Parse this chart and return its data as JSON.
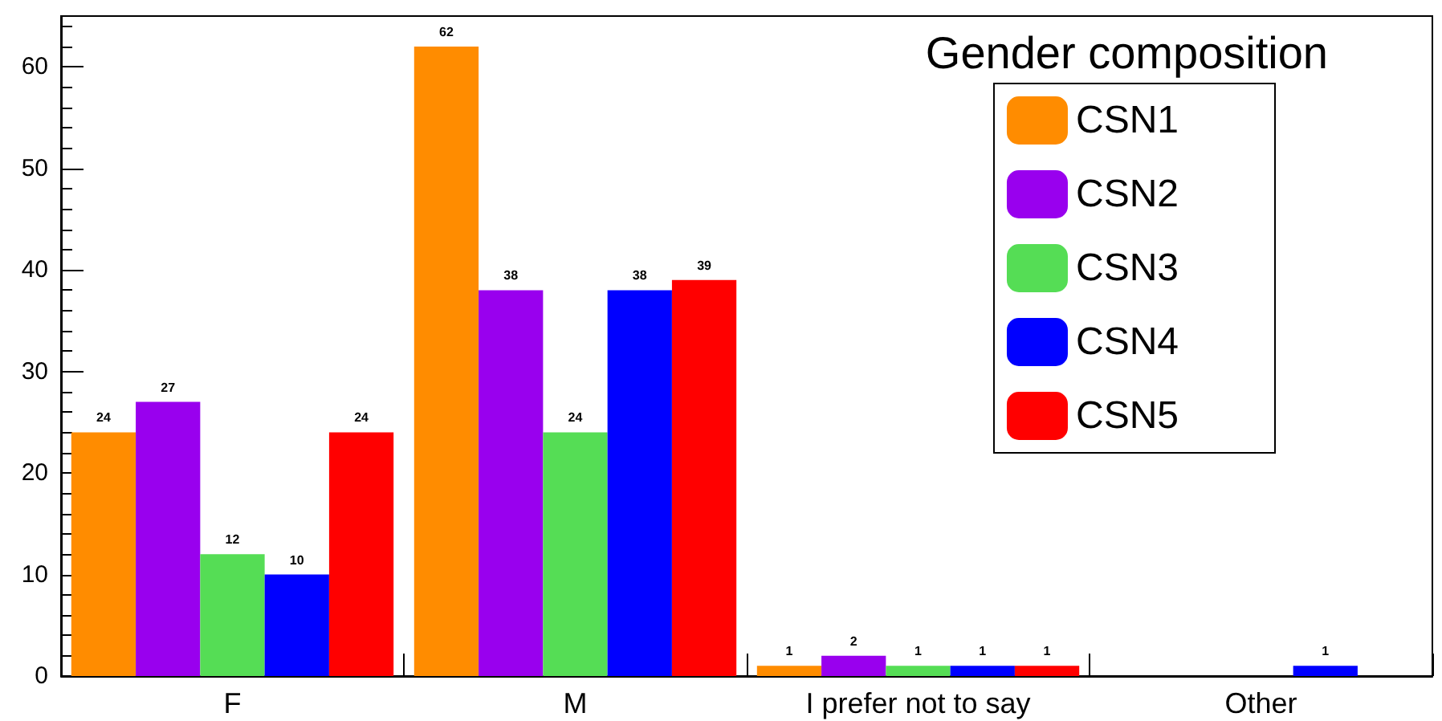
{
  "chart_data": {
    "type": "bar",
    "legend_title": "Gender composition",
    "categories": [
      "F",
      "M",
      "I prefer not to say",
      "Other"
    ],
    "series": [
      {
        "name": "CSN1",
        "color": "#ff8c00",
        "values": [
          24,
          62,
          1,
          0
        ],
        "value_labels": [
          "24",
          "62",
          "1",
          null
        ]
      },
      {
        "name": "CSN2",
        "color": "#9900ee",
        "values": [
          27,
          38,
          2,
          0
        ],
        "value_labels": [
          "27",
          "38",
          "2",
          null
        ]
      },
      {
        "name": "CSN3",
        "color": "#55dd55",
        "values": [
          12,
          24,
          1,
          0
        ],
        "value_labels": [
          "12",
          "24",
          "1",
          null
        ]
      },
      {
        "name": "CSN4",
        "color": "#0000ff",
        "values": [
          10,
          38,
          1,
          1
        ],
        "value_labels": [
          "10",
          "38",
          "1",
          "1"
        ]
      },
      {
        "name": "CSN5",
        "color": "#ff0000",
        "values": [
          24,
          39,
          1,
          0
        ],
        "value_labels": [
          "24",
          "39",
          "1",
          null
        ]
      }
    ],
    "ylim": [
      0,
      65
    ],
    "yticks": [
      0,
      10,
      20,
      30,
      40,
      50,
      60
    ],
    "grid": false,
    "legend": "top right"
  }
}
